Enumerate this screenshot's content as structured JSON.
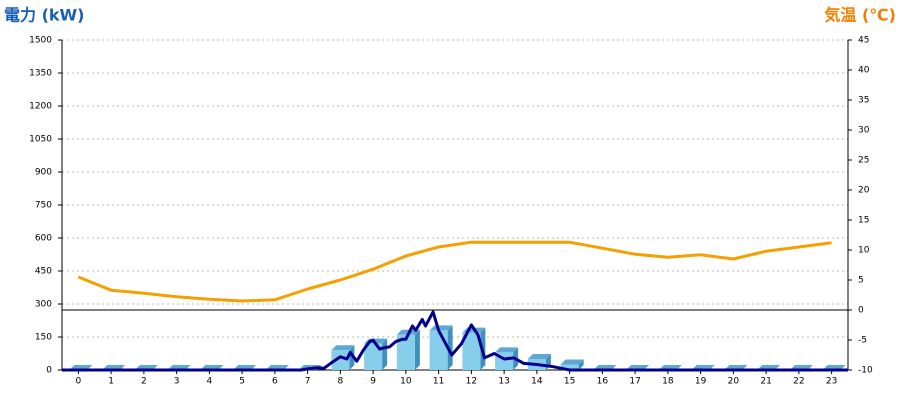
{
  "chart_data": {
    "type": "combo",
    "y_title": "電力 (kW)",
    "y2_title": "気温 (℃)",
    "xlim": [
      -0.5,
      23.5
    ],
    "xticks": [
      0,
      1,
      2,
      3,
      4,
      5,
      6,
      7,
      8,
      9,
      10,
      11,
      12,
      13,
      14,
      15,
      16,
      17,
      18,
      19,
      20,
      21,
      22,
      23
    ],
    "ylim": [
      0,
      1500
    ],
    "yticks": [
      0,
      150,
      300,
      450,
      600,
      750,
      900,
      1050,
      1200,
      1350,
      1500
    ],
    "y2lim": [
      -10,
      45
    ],
    "y2ticks": [
      -10,
      -5,
      0,
      5,
      10,
      15,
      20,
      25,
      30,
      35,
      40,
      45
    ],
    "grid": true,
    "series": [
      {
        "type": "bar",
        "color": "#87ceeb",
        "x": [
          0,
          1,
          2,
          3,
          4,
          5,
          6,
          7,
          8,
          9,
          10,
          11,
          12,
          13,
          14,
          15,
          16,
          17,
          18,
          19,
          20,
          21,
          22,
          23
        ],
        "values": [
          0,
          0,
          0,
          0,
          0,
          0,
          0,
          0,
          90,
          120,
          160,
          180,
          170,
          80,
          50,
          25,
          0,
          0,
          0,
          0,
          0,
          0,
          0,
          0
        ]
      },
      {
        "type": "line",
        "color": "#00008b",
        "x": [
          -0.5,
          6.8,
          7,
          7.3,
          7.5,
          7.7,
          8,
          8.2,
          8.3,
          8.5,
          8.7,
          8.9,
          9,
          9.2,
          9.3,
          9.5,
          9.7,
          9.9,
          10,
          10.2,
          10.3,
          10.5,
          10.6,
          10.83,
          11,
          11.4,
          11.7,
          12,
          12.2,
          12.4,
          12.7,
          13,
          13.3,
          13.6,
          14,
          14.5,
          15,
          23.5
        ],
        "values": [
          0,
          0,
          5,
          10,
          8,
          30,
          60,
          50,
          80,
          40,
          90,
          130,
          135,
          95,
          100,
          105,
          130,
          140,
          140,
          200,
          180,
          230,
          200,
          264,
          180,
          68,
          120,
          205,
          160,
          55,
          75,
          50,
          55,
          30,
          25,
          15,
          0,
          0
        ]
      },
      {
        "type": "line",
        "axis": "y2",
        "color": "#f5a000",
        "x": [
          0,
          1,
          2,
          3,
          4,
          5,
          6,
          7,
          8,
          9,
          10,
          11,
          12,
          13,
          14,
          15,
          16,
          17,
          18,
          19,
          20,
          21,
          22,
          23
        ],
        "values": [
          5.5,
          3.3,
          2.8,
          2.2,
          1.8,
          1.5,
          1.7,
          3.5,
          5,
          6.8,
          9,
          10.5,
          11.3,
          11.3,
          11.3,
          11.3,
          10.3,
          9.3,
          8.8,
          9.2,
          8.5,
          9.8,
          10.5,
          11.2
        ]
      }
    ]
  }
}
